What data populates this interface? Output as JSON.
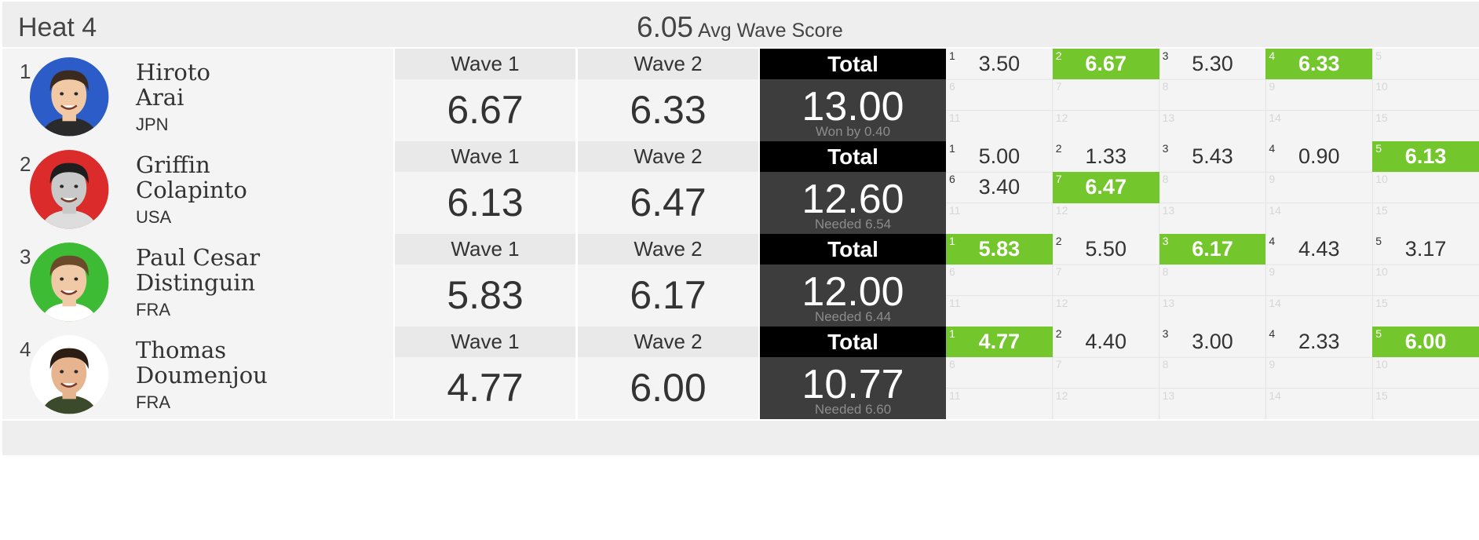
{
  "heat": {
    "title": "Heat 4",
    "avg_score": "6.05",
    "avg_label": "Avg Wave Score"
  },
  "colors": {
    "best_wave": "#73c72c",
    "total_bg": "#3d3d3d",
    "total_header_bg": "#000000"
  },
  "surfers": [
    {
      "rank": "1",
      "first_name": "Hiroto",
      "last_name": "Arai",
      "country": "JPN",
      "avatar_bg": "#2b5cc7",
      "wave1_label": "Wave 1",
      "wave2_label": "Wave 2",
      "total_label": "Total",
      "wave1": "6.67",
      "wave2": "6.33",
      "total": "13.00",
      "note": "Won by 0.40",
      "waves": [
        {
          "n": "1",
          "score": "3.50",
          "best": false
        },
        {
          "n": "2",
          "score": "6.67",
          "best": true
        },
        {
          "n": "3",
          "score": "5.30",
          "best": false
        },
        {
          "n": "4",
          "score": "6.33",
          "best": true
        },
        {
          "n": "5",
          "score": "",
          "best": false
        },
        {
          "n": "6",
          "score": "",
          "best": false
        },
        {
          "n": "7",
          "score": "",
          "best": false
        },
        {
          "n": "8",
          "score": "",
          "best": false
        },
        {
          "n": "9",
          "score": "",
          "best": false
        },
        {
          "n": "10",
          "score": "",
          "best": false
        },
        {
          "n": "11",
          "score": "",
          "best": false
        },
        {
          "n": "12",
          "score": "",
          "best": false
        },
        {
          "n": "13",
          "score": "",
          "best": false
        },
        {
          "n": "14",
          "score": "",
          "best": false
        },
        {
          "n": "15",
          "score": "",
          "best": false
        }
      ]
    },
    {
      "rank": "2",
      "first_name": "Griffin",
      "last_name": "Colapinto",
      "country": "USA",
      "avatar_bg": "#dc2b2b",
      "wave1_label": "Wave 1",
      "wave2_label": "Wave 2",
      "total_label": "Total",
      "wave1": "6.13",
      "wave2": "6.47",
      "total": "12.60",
      "note": "Needed 6.54",
      "waves": [
        {
          "n": "1",
          "score": "5.00",
          "best": false
        },
        {
          "n": "2",
          "score": "1.33",
          "best": false
        },
        {
          "n": "3",
          "score": "5.43",
          "best": false
        },
        {
          "n": "4",
          "score": "0.90",
          "best": false
        },
        {
          "n": "5",
          "score": "6.13",
          "best": true
        },
        {
          "n": "6",
          "score": "3.40",
          "best": false
        },
        {
          "n": "7",
          "score": "6.47",
          "best": true
        },
        {
          "n": "8",
          "score": "",
          "best": false
        },
        {
          "n": "9",
          "score": "",
          "best": false
        },
        {
          "n": "10",
          "score": "",
          "best": false
        },
        {
          "n": "11",
          "score": "",
          "best": false
        },
        {
          "n": "12",
          "score": "",
          "best": false
        },
        {
          "n": "13",
          "score": "",
          "best": false
        },
        {
          "n": "14",
          "score": "",
          "best": false
        },
        {
          "n": "15",
          "score": "",
          "best": false
        }
      ]
    },
    {
      "rank": "3",
      "first_name": "Paul Cesar",
      "last_name": "Distinguin",
      "country": "FRA",
      "avatar_bg": "#3dbb35",
      "wave1_label": "Wave 1",
      "wave2_label": "Wave 2",
      "total_label": "Total",
      "wave1": "5.83",
      "wave2": "6.17",
      "total": "12.00",
      "note": "Needed 6.44",
      "waves": [
        {
          "n": "1",
          "score": "5.83",
          "best": true
        },
        {
          "n": "2",
          "score": "5.50",
          "best": false
        },
        {
          "n": "3",
          "score": "6.17",
          "best": true
        },
        {
          "n": "4",
          "score": "4.43",
          "best": false
        },
        {
          "n": "5",
          "score": "3.17",
          "best": false
        },
        {
          "n": "6",
          "score": "",
          "best": false
        },
        {
          "n": "7",
          "score": "",
          "best": false
        },
        {
          "n": "8",
          "score": "",
          "best": false
        },
        {
          "n": "9",
          "score": "",
          "best": false
        },
        {
          "n": "10",
          "score": "",
          "best": false
        },
        {
          "n": "11",
          "score": "",
          "best": false
        },
        {
          "n": "12",
          "score": "",
          "best": false
        },
        {
          "n": "13",
          "score": "",
          "best": false
        },
        {
          "n": "14",
          "score": "",
          "best": false
        },
        {
          "n": "15",
          "score": "",
          "best": false
        }
      ]
    },
    {
      "rank": "4",
      "first_name": "Thomas",
      "last_name": "Doumenjou",
      "country": "FRA",
      "avatar_bg": "#ffffff",
      "wave1_label": "Wave 1",
      "wave2_label": "Wave 2",
      "total_label": "Total",
      "wave1": "4.77",
      "wave2": "6.00",
      "total": "10.77",
      "note": "Needed 6.60",
      "waves": [
        {
          "n": "1",
          "score": "4.77",
          "best": true
        },
        {
          "n": "2",
          "score": "4.40",
          "best": false
        },
        {
          "n": "3",
          "score": "3.00",
          "best": false
        },
        {
          "n": "4",
          "score": "2.33",
          "best": false
        },
        {
          "n": "5",
          "score": "6.00",
          "best": true
        },
        {
          "n": "6",
          "score": "",
          "best": false
        },
        {
          "n": "7",
          "score": "",
          "best": false
        },
        {
          "n": "8",
          "score": "",
          "best": false
        },
        {
          "n": "9",
          "score": "",
          "best": false
        },
        {
          "n": "10",
          "score": "",
          "best": false
        },
        {
          "n": "11",
          "score": "",
          "best": false
        },
        {
          "n": "12",
          "score": "",
          "best": false
        },
        {
          "n": "13",
          "score": "",
          "best": false
        },
        {
          "n": "14",
          "score": "",
          "best": false
        },
        {
          "n": "15",
          "score": "",
          "best": false
        }
      ]
    }
  ]
}
